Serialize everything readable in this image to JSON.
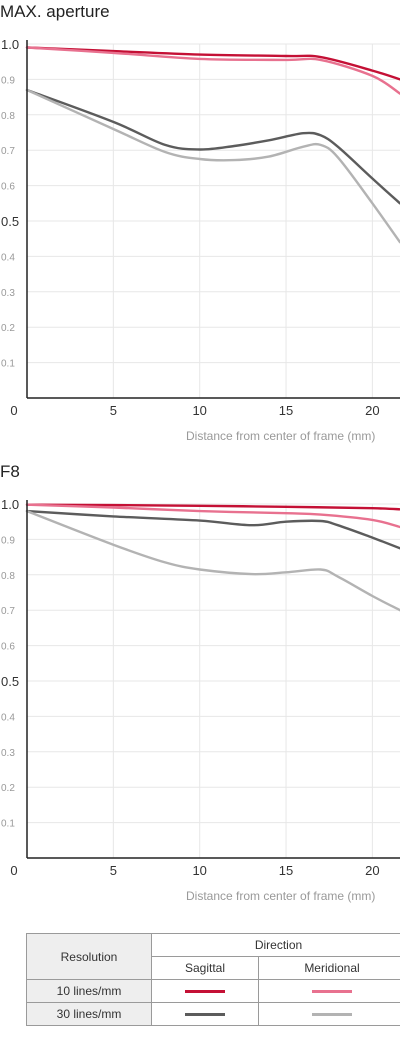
{
  "colors": {
    "10_sagittal": "#c41035",
    "10_meridional": "#e8718f",
    "30_sagittal": "#5c5c5c",
    "30_meridional": "#b3b3b3",
    "grid": "#e7e7e7",
    "tick_text": "#999999",
    "axis_text": "#333333",
    "axis_line": "#222222"
  },
  "chart_data": [
    {
      "type": "line",
      "title": "MAX. aperture",
      "xlabel": "Distance from center of frame (mm)",
      "xlim": [
        0,
        21.6
      ],
      "ylim": [
        0,
        1.0
      ],
      "x_ticks": [
        "0",
        "5",
        "10",
        "15",
        "20"
      ],
      "y_ticks": [
        "1.0",
        "0.9",
        "0.8",
        "0.7",
        "0.6",
        "0.5",
        "0.4",
        "0.3",
        "0.2",
        "0.1"
      ],
      "series": [
        {
          "key": "10_sagittal",
          "x": [
            0,
            5,
            10,
            15,
            17,
            20,
            21.6
          ],
          "values": [
            0.99,
            0.98,
            0.97,
            0.966,
            0.963,
            0.925,
            0.9
          ]
        },
        {
          "key": "10_meridional",
          "x": [
            0,
            5,
            10,
            15,
            17,
            20,
            21.6
          ],
          "values": [
            0.99,
            0.975,
            0.958,
            0.955,
            0.955,
            0.91,
            0.86
          ]
        },
        {
          "key": "30_sagittal",
          "x": [
            0,
            5,
            8,
            10,
            12,
            14,
            16,
            17,
            18,
            20,
            21.6
          ],
          "values": [
            0.87,
            0.78,
            0.715,
            0.702,
            0.712,
            0.728,
            0.748,
            0.742,
            0.71,
            0.62,
            0.55
          ]
        },
        {
          "key": "30_meridional",
          "x": [
            0,
            5,
            8,
            10,
            12,
            14,
            16,
            17,
            18,
            20,
            21.6
          ],
          "values": [
            0.87,
            0.76,
            0.695,
            0.675,
            0.672,
            0.682,
            0.71,
            0.715,
            0.68,
            0.55,
            0.44
          ]
        }
      ]
    },
    {
      "type": "line",
      "title": "F8",
      "xlabel": "Distance from center of frame (mm)",
      "xlim": [
        0,
        21.6
      ],
      "ylim": [
        0,
        1.0
      ],
      "x_ticks": [
        "0",
        "5",
        "10",
        "15",
        "20"
      ],
      "y_ticks": [
        "1.0",
        "0.9",
        "0.8",
        "0.7",
        "0.6",
        "0.5",
        "0.4",
        "0.3",
        "0.2",
        "0.1"
      ],
      "series": [
        {
          "key": "10_sagittal",
          "x": [
            0,
            5,
            10,
            15,
            20,
            21.6
          ],
          "values": [
            0.998,
            0.997,
            0.995,
            0.992,
            0.988,
            0.985
          ]
        },
        {
          "key": "10_meridional",
          "x": [
            0,
            5,
            10,
            15,
            17,
            20,
            21.6
          ],
          "values": [
            0.998,
            0.99,
            0.98,
            0.974,
            0.97,
            0.955,
            0.935
          ]
        },
        {
          "key": "30_sagittal",
          "x": [
            0,
            5,
            10,
            13,
            15,
            17,
            18,
            20,
            21.6
          ],
          "values": [
            0.98,
            0.965,
            0.953,
            0.94,
            0.95,
            0.952,
            0.94,
            0.905,
            0.875
          ]
        },
        {
          "key": "30_meridional",
          "x": [
            0,
            5,
            8,
            10,
            13,
            15,
            17,
            18,
            20,
            21.6
          ],
          "values": [
            0.98,
            0.885,
            0.835,
            0.815,
            0.802,
            0.807,
            0.815,
            0.795,
            0.74,
            0.7
          ]
        }
      ]
    }
  ],
  "legend": {
    "resolution_header": "Resolution",
    "direction_header": "Direction",
    "sagittal": "Sagittal",
    "meridional": "Meridional",
    "row_10": "10 lines/mm",
    "row_30": "30 lines/mm"
  }
}
